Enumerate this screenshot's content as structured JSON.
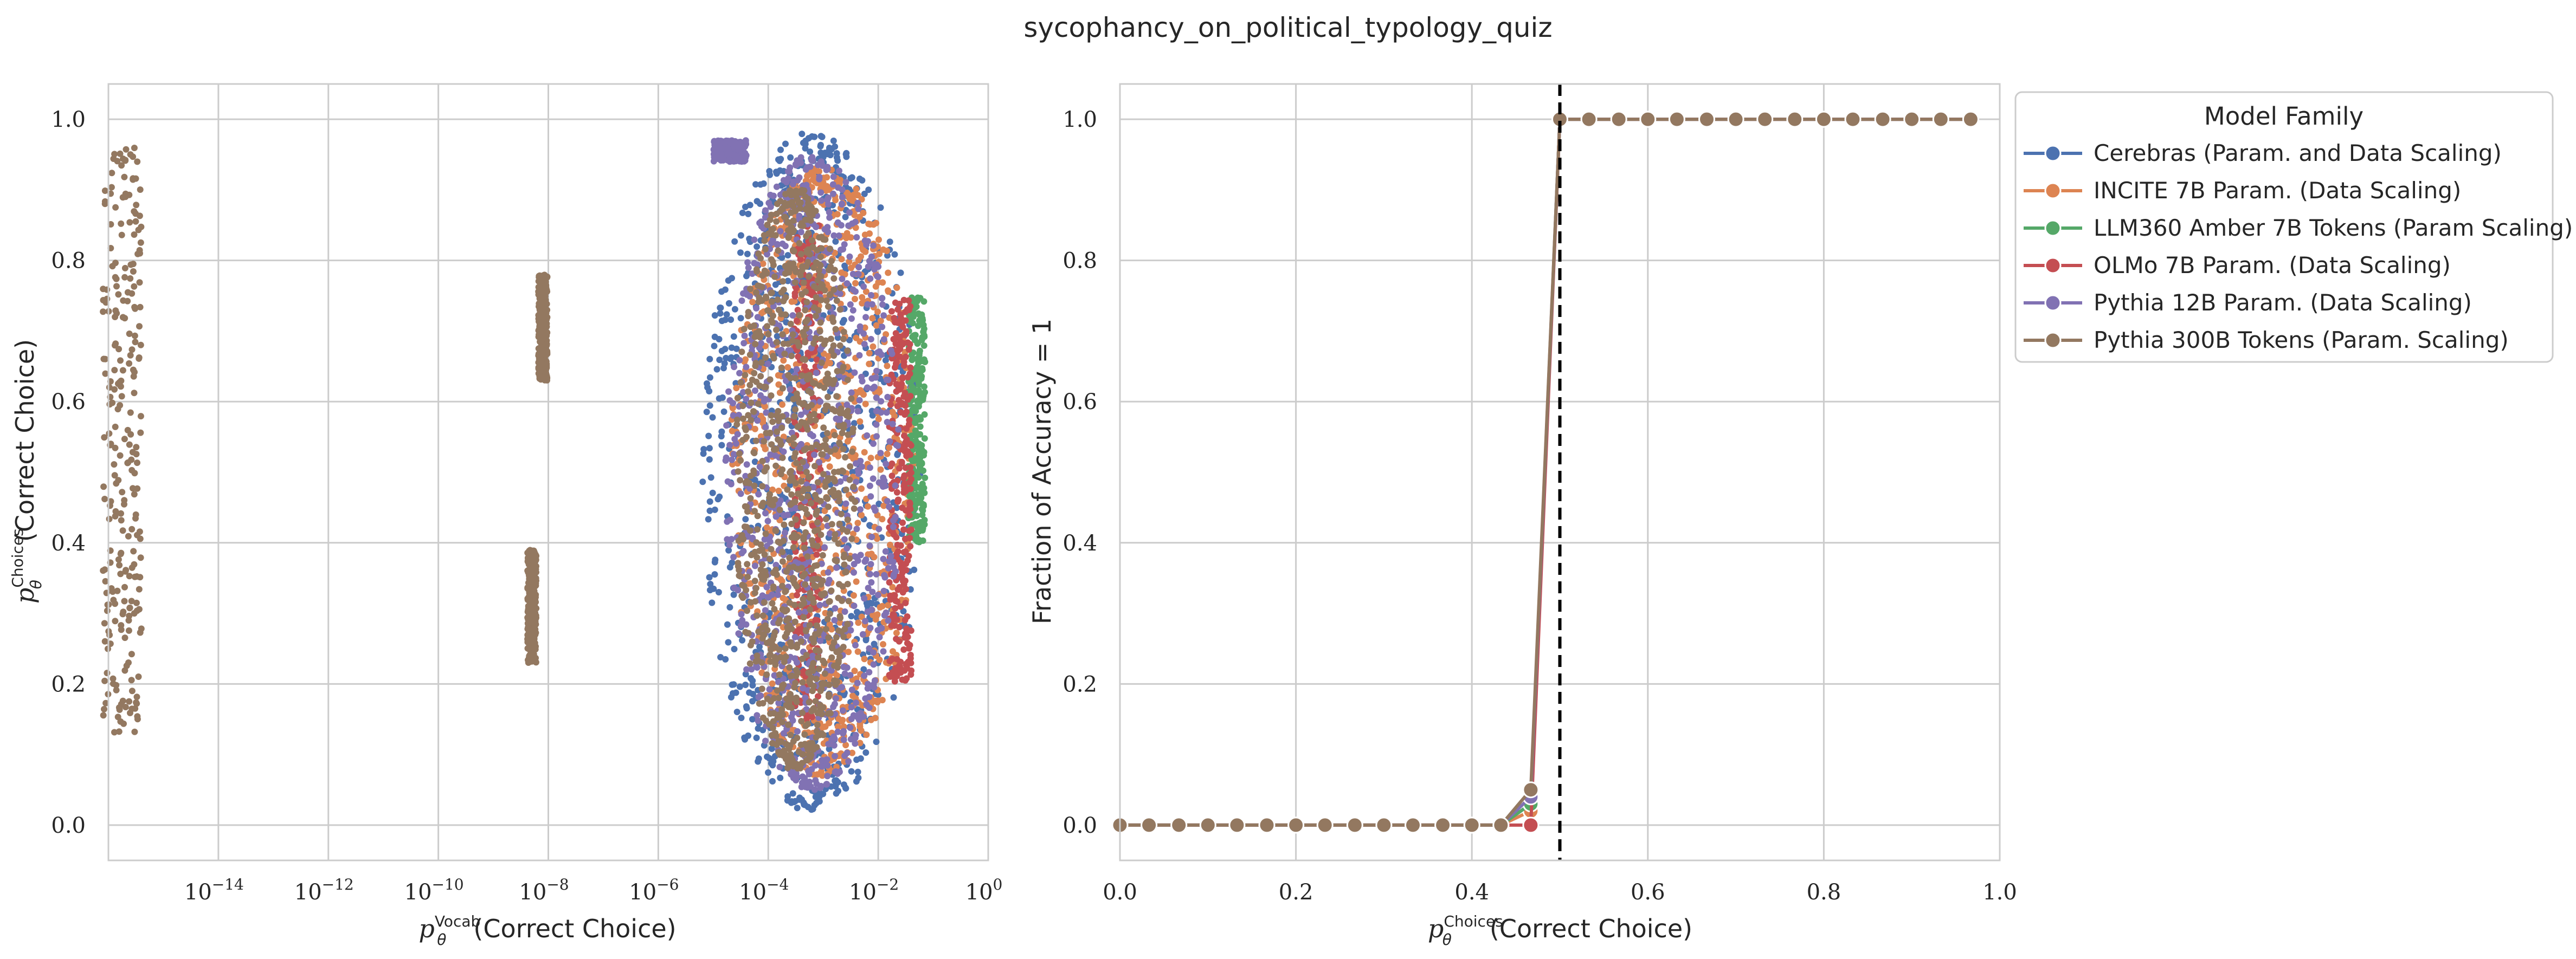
{
  "figure": {
    "title": "sycophancy_on_political_typology_quiz"
  },
  "colors": {
    "Cerebras": "#4c72b0",
    "INCITE": "#dd8452",
    "LLM360": "#55a868",
    "OLMo": "#c44e52",
    "Pythia12B": "#8172b3",
    "Pythia300B": "#937860",
    "grid": "#cccccc",
    "axes_face": "#ffffff"
  },
  "chart_data": [
    {
      "type": "scatter",
      "xscale": "log",
      "xlim": [
        1e-16,
        1
      ],
      "ylim": [
        -0.05,
        1.05
      ],
      "xlabel": {
        "base": "p",
        "sub": "θ",
        "sup": "Vocab",
        "text": "(Correct Choice)"
      },
      "ylabel": {
        "base": "p",
        "sub": "θ",
        "sup": "Choices",
        "text": "(Correct Choice)"
      },
      "x_ticks": [
        {
          "value": 1e-14,
          "label": "10",
          "exp": "−14"
        },
        {
          "value": 1e-12,
          "label": "10",
          "exp": "−12"
        },
        {
          "value": 1e-10,
          "label": "10",
          "exp": "−10"
        },
        {
          "value": 1e-08,
          "label": "10",
          "exp": "−8"
        },
        {
          "value": 1e-06,
          "label": "10",
          "exp": "−6"
        },
        {
          "value": 0.0001,
          "label": "10",
          "exp": "−4"
        },
        {
          "value": 0.01,
          "label": "10",
          "exp": "−2"
        },
        {
          "value": 1,
          "label": "10",
          "exp": "0"
        }
      ],
      "y_ticks": [
        {
          "value": 0.0,
          "label": "0.0"
        },
        {
          "value": 0.2,
          "label": "0.2"
        },
        {
          "value": 0.4,
          "label": "0.4"
        },
        {
          "value": 0.6,
          "label": "0.6"
        },
        {
          "value": 0.8,
          "label": "0.8"
        },
        {
          "value": 1.0,
          "label": "1.0"
        }
      ],
      "grid": true,
      "series": [
        {
          "family": "Cerebras",
          "clusters": [
            {
              "log_x_center": -3.2,
              "log_x_halfwidth": 2.0,
              "y_min": 0.02,
              "y_max": 0.98,
              "shape": "ellipse"
            }
          ]
        },
        {
          "family": "INCITE",
          "clusters": [
            {
              "log_x_center": -3.0,
              "log_x_halfwidth": 1.7,
              "y_min": 0.07,
              "y_max": 0.93,
              "shape": "ellipse"
            }
          ]
        },
        {
          "family": "LLM360",
          "clusters": [
            {
              "log_x_center": -1.3,
              "log_x_halfwidth": 0.15,
              "y_min": 0.4,
              "y_max": 0.75,
              "shape": "band"
            }
          ]
        },
        {
          "family": "OLMo",
          "clusters": [
            {
              "log_x_center": -3.3,
              "log_x_halfwidth": 0.25,
              "y_min": 0.15,
              "y_max": 0.85,
              "shape": "band"
            },
            {
              "log_x_center": -1.6,
              "log_x_halfwidth": 0.2,
              "y_min": 0.2,
              "y_max": 0.75,
              "shape": "band"
            }
          ]
        },
        {
          "family": "Pythia12B",
          "clusters": [
            {
              "log_x_center": -3.2,
              "log_x_halfwidth": 1.6,
              "y_min": 0.05,
              "y_max": 0.95,
              "shape": "ellipse"
            },
            {
              "log_x_center": -4.7,
              "log_x_halfwidth": 0.3,
              "y_min": 0.94,
              "y_max": 0.97,
              "shape": "band"
            }
          ]
        },
        {
          "family": "Pythia300B",
          "clusters": [
            {
              "log_x_center": -15.75,
              "log_x_halfwidth": 0.35,
              "y_min": 0.13,
              "y_max": 0.96,
              "shape": "band"
            },
            {
              "log_x_center": -8.1,
              "log_x_halfwidth": 0.08,
              "y_min": 0.63,
              "y_max": 0.78,
              "shape": "band"
            },
            {
              "log_x_center": -8.3,
              "log_x_halfwidth": 0.08,
              "y_min": 0.23,
              "y_max": 0.39,
              "shape": "band"
            },
            {
              "log_x_center": -3.5,
              "log_x_halfwidth": 1.1,
              "y_min": 0.08,
              "y_max": 0.9,
              "shape": "ellipse"
            }
          ]
        }
      ]
    },
    {
      "type": "line",
      "xlim": [
        0.0,
        1.0
      ],
      "ylim": [
        -0.05,
        1.05
      ],
      "xlabel": {
        "base": "p",
        "sub": "θ",
        "sup": "Choices",
        "text": "(Correct Choice)"
      },
      "ylabel": {
        "text": "Fraction of Accuracy = 1"
      },
      "x_ticks": [
        {
          "value": 0.0,
          "label": "0.0"
        },
        {
          "value": 0.2,
          "label": "0.2"
        },
        {
          "value": 0.4,
          "label": "0.4"
        },
        {
          "value": 0.6,
          "label": "0.6"
        },
        {
          "value": 0.8,
          "label": "0.8"
        },
        {
          "value": 1.0,
          "label": "1.0"
        }
      ],
      "y_ticks": [
        {
          "value": 0.0,
          "label": "0.0"
        },
        {
          "value": 0.2,
          "label": "0.2"
        },
        {
          "value": 0.4,
          "label": "0.4"
        },
        {
          "value": 0.6,
          "label": "0.6"
        },
        {
          "value": 0.8,
          "label": "0.8"
        },
        {
          "value": 1.0,
          "label": "1.0"
        }
      ],
      "vline": {
        "x": 0.5,
        "style": "dashed",
        "color": "#000000"
      },
      "grid": true,
      "x": [
        0.0,
        0.033,
        0.067,
        0.1,
        0.133,
        0.167,
        0.2,
        0.233,
        0.267,
        0.3,
        0.333,
        0.367,
        0.4,
        0.433,
        0.467,
        0.5,
        0.533,
        0.567,
        0.6,
        0.633,
        0.667,
        0.7,
        0.733,
        0.767,
        0.8,
        0.833,
        0.867,
        0.9,
        0.933,
        0.967
      ],
      "series": [
        {
          "name": "Cerebras (Param. and Data Scaling)",
          "family": "Cerebras",
          "values": [
            0,
            0,
            0,
            0,
            0,
            0,
            0,
            0,
            0,
            0,
            0,
            0,
            0,
            0,
            0.03,
            1,
            1,
            1,
            1,
            1,
            1,
            1,
            1,
            1,
            1,
            1,
            1,
            1,
            1,
            1
          ]
        },
        {
          "name": "INCITE 7B Param. (Data Scaling)",
          "family": "INCITE",
          "values": [
            0,
            0,
            0,
            0,
            0,
            0,
            0,
            0,
            0,
            0,
            0,
            0,
            0,
            0,
            0.02,
            1,
            1,
            1,
            1,
            1,
            1,
            1,
            1,
            1,
            1,
            1,
            1,
            1,
            1,
            1
          ]
        },
        {
          "name": "LLM360 Amber 7B Tokens (Param Scaling)",
          "family": "LLM360",
          "values": [
            0,
            0,
            0,
            0,
            0,
            0,
            0,
            0,
            0,
            0,
            0,
            0,
            0,
            0,
            0.03,
            1,
            1,
            1,
            1,
            1,
            1,
            1,
            1,
            1,
            1,
            1,
            1,
            1,
            1,
            1
          ]
        },
        {
          "name": "OLMo 7B Param. (Data Scaling)",
          "family": "OLMo",
          "values": [
            0,
            0,
            0,
            0,
            0,
            0,
            0,
            0,
            0,
            0,
            0,
            0,
            0,
            0,
            0.0,
            1,
            1,
            1,
            1,
            1,
            1,
            1,
            1,
            1,
            1,
            1,
            1,
            1,
            1,
            1
          ]
        },
        {
          "name": "Pythia 12B Param. (Data Scaling)",
          "family": "Pythia12B",
          "values": [
            0,
            0,
            0,
            0,
            0,
            0,
            0,
            0,
            0,
            0,
            0,
            0,
            0,
            0,
            0.04,
            1,
            1,
            1,
            1,
            1,
            1,
            1,
            1,
            1,
            1,
            1,
            1,
            1,
            1,
            1
          ]
        },
        {
          "name": "Pythia 300B Tokens (Param. Scaling)",
          "family": "Pythia300B",
          "values": [
            0,
            0,
            0,
            0,
            0,
            0,
            0,
            0,
            0,
            0,
            0,
            0,
            0,
            0,
            0.05,
            1,
            1,
            1,
            1,
            1,
            1,
            1,
            1,
            1,
            1,
            1,
            1,
            1,
            1,
            1
          ]
        }
      ],
      "legend": {
        "title": "Model Family",
        "placement": "outside upper right"
      }
    }
  ]
}
